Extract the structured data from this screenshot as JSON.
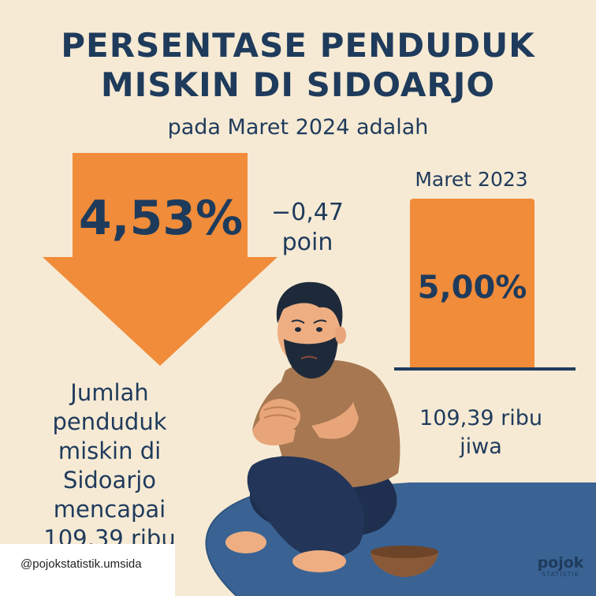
{
  "title": {
    "line1": "PERSENTASE PENDUDUK",
    "line2": "MISKIN DI SIDOARJO"
  },
  "subtitle": "pada Maret 2024 adalah",
  "main_value": "4,53%",
  "change": {
    "value": "−0,47",
    "unit": "poin"
  },
  "previous": {
    "label": "Maret 2023",
    "value": "5,00%",
    "count_line1": "109,39 ribu",
    "count_line2": "jiwa"
  },
  "description": [
    "Jumlah",
    "penduduk",
    "miskin di",
    "Sidoarjo",
    "mencapai",
    "109,39 ribu"
  ],
  "handle": "@pojokstatistik.umsida",
  "logo": {
    "main": "pojok",
    "sub": "STATISTIK"
  },
  "colors": {
    "background": "#f6ead4",
    "navy": "#1f3b5c",
    "orange": "#f08c3a",
    "rug": "#3a6394"
  }
}
